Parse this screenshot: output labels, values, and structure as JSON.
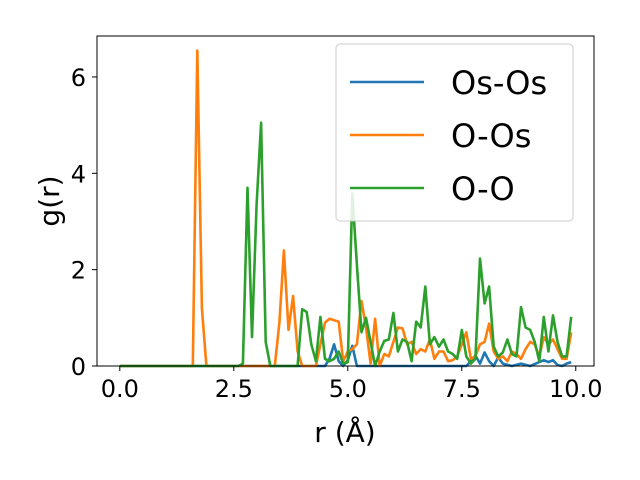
{
  "chart_data": {
    "type": "line",
    "xlabel": "r (Å)",
    "ylabel": "g(r)",
    "xlim": [
      -0.5,
      10.4
    ],
    "ylim": [
      0,
      6.85
    ],
    "xticks": [
      0.0,
      2.5,
      5.0,
      7.5,
      10.0
    ],
    "xtick_labels": [
      "0.0",
      "2.5",
      "5.0",
      "7.5",
      "10.0"
    ],
    "yticks": [
      0,
      2,
      4,
      6
    ],
    "ytick_labels": [
      "0",
      "2",
      "4",
      "6"
    ],
    "grid": false,
    "legend_position": "top-right",
    "series": [
      {
        "name": "Os-Os",
        "color": "#1f77b4",
        "x": [
          0.0,
          1.5,
          3.0,
          4.5,
          4.6,
          4.7,
          4.8,
          4.9,
          5.0,
          5.1,
          5.2,
          5.3,
          5.5,
          6.5,
          7.6,
          7.7,
          7.8,
          7.9,
          8.0,
          8.1,
          8.2,
          8.3,
          8.4,
          8.6,
          8.8,
          9.0,
          9.2,
          9.3,
          9.4,
          9.5,
          9.6,
          9.7,
          9.8,
          9.9
        ],
        "y": [
          0,
          0,
          0,
          0,
          0.15,
          0.45,
          0.1,
          0,
          0.12,
          0.42,
          0,
          0,
          0,
          0,
          0,
          0.1,
          0.22,
          0.05,
          0.28,
          0.1,
          0,
          0.18,
          0.05,
          0,
          0.05,
          0,
          0.08,
          0.12,
          0.08,
          0.12,
          0.02,
          0,
          0.05,
          0.08
        ]
      },
      {
        "name": "O-Os",
        "color": "#ff7f0e",
        "x": [
          0.0,
          1.6,
          1.7,
          1.8,
          1.9,
          3.4,
          3.5,
          3.6,
          3.7,
          3.8,
          3.9,
          4.0,
          4.3,
          4.4,
          4.5,
          4.6,
          4.7,
          4.8,
          4.9,
          5.0,
          5.1,
          5.2,
          5.3,
          5.4,
          5.5,
          5.6,
          5.7,
          5.8,
          5.9,
          6.0,
          6.1,
          6.2,
          6.3,
          6.4,
          6.5,
          6.6,
          6.7,
          6.8,
          6.9,
          7.0,
          7.1,
          7.2,
          7.3,
          7.4,
          7.5,
          7.6,
          7.7,
          7.8,
          7.9,
          8.0,
          8.1,
          8.2,
          8.3,
          8.4,
          8.5,
          8.6,
          8.7,
          8.8,
          8.9,
          9.0,
          9.1,
          9.2,
          9.3,
          9.4,
          9.5,
          9.6,
          9.7,
          9.8,
          9.9
        ],
        "y": [
          0,
          0,
          6.55,
          1.2,
          0,
          0,
          0.9,
          2.4,
          0.75,
          1.45,
          0.3,
          0,
          0,
          0.45,
          0.9,
          0.98,
          0.95,
          0.92,
          0.1,
          0.3,
          0.35,
          0.45,
          1.35,
          0.8,
          0.05,
          0.98,
          0.0,
          0.25,
          0.2,
          0.5,
          0.8,
          0.78,
          0.45,
          0.5,
          0.25,
          0.35,
          0.3,
          0.55,
          0.15,
          0.3,
          0.3,
          0.1,
          0.12,
          0.2,
          0.45,
          0.7,
          0.15,
          0.2,
          0.45,
          0.5,
          0.88,
          0.3,
          0.15,
          0.2,
          0.1,
          0.3,
          0.25,
          0.15,
          0.35,
          0.5,
          0.45,
          0.2,
          0.6,
          0.45,
          0.55,
          0.35,
          0.15,
          0.15,
          0.7
        ]
      },
      {
        "name": "O-O",
        "color": "#2ca02c",
        "x": [
          0.0,
          2.6,
          2.7,
          2.8,
          2.9,
          3.0,
          3.1,
          3.2,
          3.3,
          3.4,
          3.9,
          4.0,
          4.1,
          4.2,
          4.3,
          4.4,
          4.5,
          4.6,
          4.7,
          4.8,
          4.9,
          5.0,
          5.1,
          5.2,
          5.3,
          5.4,
          5.5,
          5.6,
          5.7,
          5.8,
          5.9,
          6.0,
          6.1,
          6.2,
          6.3,
          6.4,
          6.5,
          6.6,
          6.7,
          6.8,
          6.9,
          7.0,
          7.1,
          7.2,
          7.3,
          7.4,
          7.5,
          7.6,
          7.7,
          7.8,
          7.9,
          8.0,
          8.1,
          8.2,
          8.3,
          8.4,
          8.5,
          8.6,
          8.7,
          8.8,
          8.9,
          9.0,
          9.1,
          9.2,
          9.3,
          9.4,
          9.5,
          9.6,
          9.7,
          9.8,
          9.9
        ],
        "y": [
          0,
          0,
          0.05,
          3.7,
          0.6,
          3.35,
          5.05,
          0.5,
          0,
          0,
          0,
          1.18,
          1.12,
          0.45,
          0.1,
          1.02,
          0.15,
          0.1,
          0.15,
          0.3,
          0.05,
          0.08,
          3.58,
          2.1,
          0.7,
          1.0,
          0.5,
          0.0,
          0.3,
          0.52,
          0.55,
          1.1,
          0.3,
          0.55,
          0.5,
          0.1,
          0.92,
          0.8,
          1.65,
          0.45,
          0.6,
          0.4,
          0.55,
          0.3,
          0.25,
          0.15,
          0.75,
          0.2,
          0.05,
          0.15,
          2.23,
          1.3,
          1.65,
          0.4,
          0.2,
          0.28,
          0.55,
          0.25,
          0.2,
          1.22,
          0.8,
          0.75,
          0.5,
          0.1,
          1.02,
          0.3,
          1.05,
          0.5,
          0.2,
          0.2,
          1.02
        ]
      }
    ]
  }
}
